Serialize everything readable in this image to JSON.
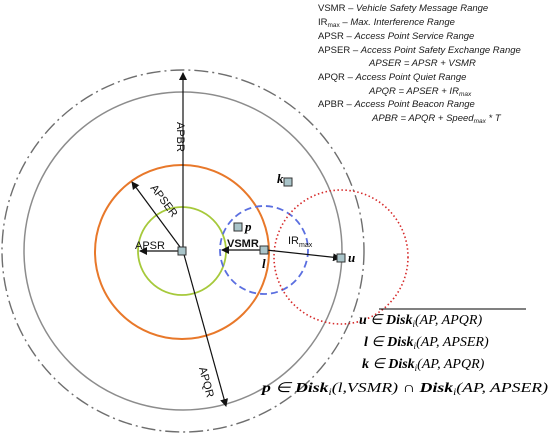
{
  "legend": {
    "vsmr": {
      "abbr": "VSMR",
      "sep": " – ",
      "desc": "Vehicle Safety Message Range"
    },
    "irmax": {
      "abbr": "IR",
      "sub": "max",
      "sep": " – ",
      "desc": "Max. Interference Range"
    },
    "apsr": {
      "abbr": "APSR",
      "sep": " – ",
      "desc": "Access Point Service Range"
    },
    "apser": {
      "abbr": "APSER",
      "sep": " – ",
      "desc": "Access Point Safety Exchange Range"
    },
    "apser_eq": "APSER = APSR + VSMR",
    "apqr": {
      "abbr": "APQR",
      "sep": " – ",
      "desc": "Access Point Quiet Range"
    },
    "apqr_eq": {
      "text": "APQR = APSER + IR",
      "sub": "max"
    },
    "apbr": {
      "abbr": "APBR",
      "sep": " – ",
      "desc": "Access Point Beacon Range"
    },
    "apbr_eq": {
      "pre": "APBR = APQR + Speed",
      "sub": "max",
      "post": " * T"
    }
  },
  "labels": {
    "apbr": "APBR",
    "apser": "APSER",
    "apsr": "APSR",
    "vsmr": "VSMR",
    "ir": "IR",
    "ir_sub": "max",
    "apqr": "APQR",
    "node_k": "k",
    "node_p": "p",
    "node_l": "l",
    "node_u": "u"
  },
  "formulas": {
    "f1": {
      "v": "u",
      "rel": " ∈ ",
      "disk": "Disk",
      "sub": "i",
      "args": "(AP, APQR)",
      "overline": true
    },
    "f2": {
      "v": "l",
      "rel": " ∈ ",
      "disk": "Disk",
      "sub": "i",
      "args": "(AP, APSER)"
    },
    "f3": {
      "v": "k",
      "rel": " ∈ ",
      "disk": "Disk",
      "sub": "i",
      "args": "(AP, APQR)"
    },
    "f4": {
      "v": "p",
      "rel": " ∈ ",
      "disk": "Disk",
      "sub": "i",
      "args": "(l,VSMR)",
      "cap": " ∩ ",
      "disk2": "Disk",
      "sub2": "i",
      "args2": "(AP, APSER)"
    }
  },
  "colors": {
    "apsr_circle": "#a6c93b",
    "apser_circle": "#e8782a",
    "apqr_circle": "#8c8c8c",
    "apbr_circle": "#6e6e6e",
    "vsmr_circle": "#5b6fe0",
    "ir_circle": "#d62a2a",
    "node_fill": "#a9c4c9"
  },
  "icons": {
    "access_point": "square-node-icon",
    "vehicle": "square-node-icon"
  }
}
